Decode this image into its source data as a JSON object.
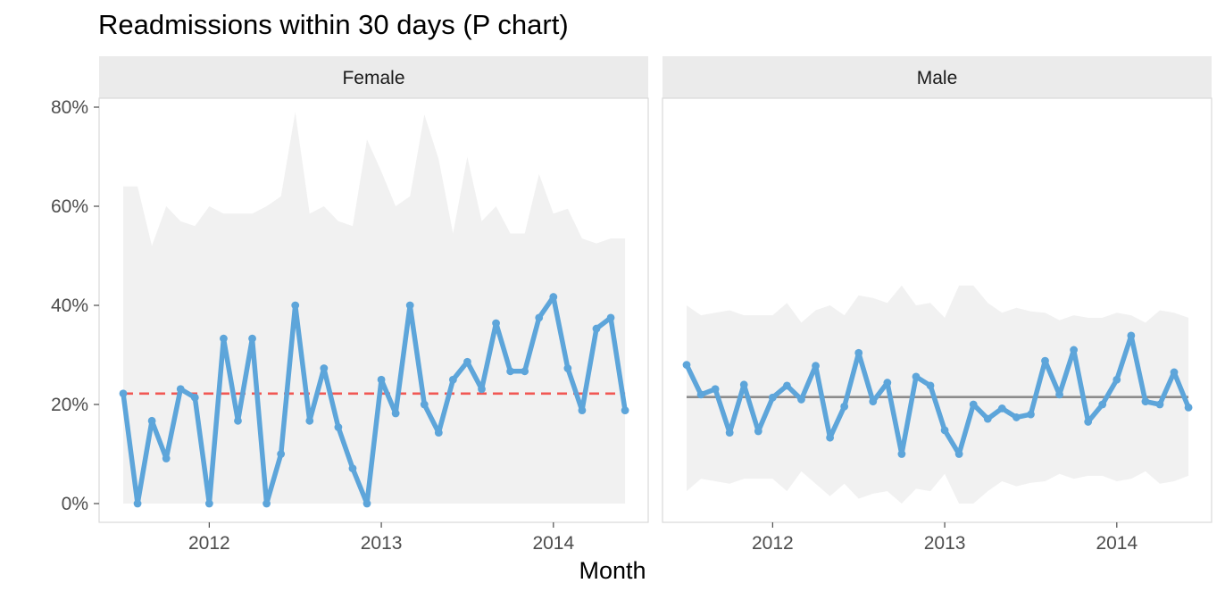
{
  "chart_data": {
    "type": "line",
    "title": "Readmissions within 30 days (P chart)",
    "xlabel": "Month",
    "ylabel": "",
    "ylim": [
      0,
      0.8
    ],
    "y_ticks": [
      0,
      0.2,
      0.4,
      0.6,
      0.8
    ],
    "y_tick_labels": [
      "0%",
      "20%",
      "40%",
      "60%",
      "80%"
    ],
    "x_ticks": [
      "2012",
      "2013",
      "2014"
    ],
    "x_start": "2011-07",
    "colors": {
      "line": "#5DA5DA",
      "limits_band": "#F1F1F1",
      "centre_shift": "#F15854",
      "centre": "#8C8C8C",
      "strip": "#EBEBEB"
    },
    "panels": [
      {
        "name": "Female",
        "centre_line": 0.222,
        "centre_style": "dashed",
        "values": [
          0.222,
          0.0,
          0.167,
          0.091,
          0.231,
          0.214,
          0.0,
          0.333,
          0.167,
          0.333,
          0.0,
          0.1,
          0.4,
          0.167,
          0.273,
          0.154,
          0.071,
          0.0,
          0.25,
          0.182,
          0.4,
          0.2,
          0.143,
          0.25,
          0.286,
          0.231,
          0.364,
          0.267,
          0.267,
          0.375,
          0.417,
          0.273,
          0.188,
          0.353,
          0.375,
          0.188
        ],
        "ucl": [
          0.64,
          0.64,
          0.52,
          0.6,
          0.57,
          0.56,
          0.6,
          0.585,
          0.585,
          0.585,
          0.6,
          0.62,
          0.79,
          0.585,
          0.6,
          0.57,
          0.56,
          0.735,
          0.67,
          0.6,
          0.62,
          0.785,
          0.695,
          0.545,
          0.7,
          0.57,
          0.6,
          0.545,
          0.545,
          0.665,
          0.585,
          0.595,
          0.535,
          0.525,
          0.535,
          0.535
        ],
        "lcl": [
          0,
          0,
          0,
          0,
          0,
          0,
          0,
          0,
          0,
          0,
          0,
          0,
          0,
          0,
          0,
          0,
          0,
          0,
          0,
          0,
          0,
          0,
          0,
          0,
          0,
          0,
          0,
          0,
          0,
          0,
          0,
          0,
          0,
          0,
          0,
          0
        ]
      },
      {
        "name": "Male",
        "centre_line": 0.215,
        "centre_style": "solid",
        "values": [
          0.28,
          0.22,
          0.231,
          0.143,
          0.24,
          0.146,
          0.214,
          0.238,
          0.21,
          0.278,
          0.133,
          0.196,
          0.304,
          0.206,
          0.244,
          0.1,
          0.256,
          0.238,
          0.148,
          0.1,
          0.2,
          0.171,
          0.192,
          0.174,
          0.18,
          0.288,
          0.22,
          0.31,
          0.165,
          0.2,
          0.25,
          0.339,
          0.206,
          0.2,
          0.265,
          0.194
        ],
        "ucl": [
          0.4,
          0.38,
          0.385,
          0.39,
          0.38,
          0.38,
          0.38,
          0.405,
          0.365,
          0.39,
          0.4,
          0.38,
          0.42,
          0.415,
          0.405,
          0.44,
          0.4,
          0.405,
          0.375,
          0.44,
          0.44,
          0.405,
          0.385,
          0.395,
          0.388,
          0.385,
          0.37,
          0.38,
          0.375,
          0.375,
          0.385,
          0.38,
          0.365,
          0.39,
          0.385,
          0.375
        ],
        "lcl": [
          0.025,
          0.05,
          0.045,
          0.04,
          0.05,
          0.05,
          0.05,
          0.025,
          0.065,
          0.04,
          0.015,
          0.04,
          0.01,
          0.02,
          0.025,
          0,
          0.03,
          0.025,
          0.06,
          0,
          0,
          0.025,
          0.045,
          0.035,
          0.042,
          0.045,
          0.06,
          0.05,
          0.056,
          0.056,
          0.045,
          0.05,
          0.065,
          0.04,
          0.045,
          0.056
        ]
      }
    ]
  }
}
